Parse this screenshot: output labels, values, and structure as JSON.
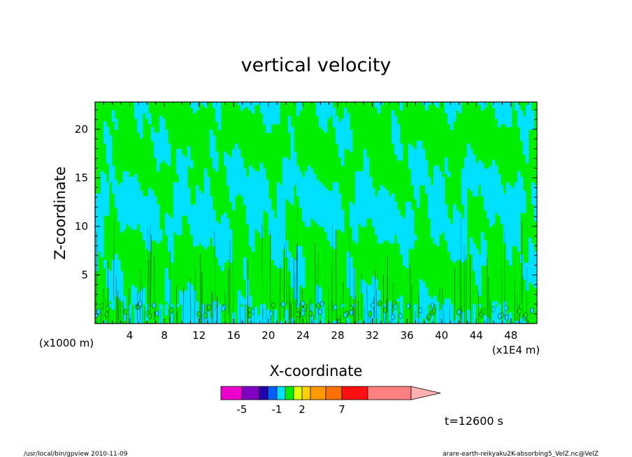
{
  "chart_data": {
    "type": "heatmap",
    "title": "vertical velocity",
    "xlabel": "X-coordinate",
    "ylabel": "Z-coordinate",
    "x_unit": "(x1E4 m)",
    "y_unit": "(x1000 m)",
    "x_ticks": [
      4,
      8,
      12,
      16,
      20,
      24,
      28,
      32,
      36,
      40,
      44,
      48
    ],
    "y_ticks": [
      5,
      10,
      15,
      20
    ],
    "xlim": [
      0,
      51
    ],
    "ylim": [
      0,
      22.8
    ],
    "colorbar": {
      "levels": [
        -7,
        -5,
        -4,
        -3,
        -2,
        -1,
        0,
        1,
        2,
        3,
        5,
        7,
        9,
        15
      ],
      "labels": [
        "-5",
        "-1",
        "2",
        "7"
      ],
      "colors": [
        "#ee00cc",
        "#8000c0",
        "#2000b0",
        "#0060ff",
        "#00e0ff",
        "#00ee00",
        "#e0ff00",
        "#ffd000",
        "#ff9900",
        "#ff7000",
        "#ff1010",
        "#ff8080",
        "#ffb0b0"
      ]
    },
    "dominant_colors": {
      "negative_small": "#00e0ff",
      "positive_small": "#00ee00"
    },
    "time_label": "t=12600 s"
  },
  "footer": {
    "left": "/usr/local/bin/gpview  2010-11-09",
    "right": "arare-earth-reikyaku2K-absorbing5_VelZ.nc@VelZ"
  }
}
